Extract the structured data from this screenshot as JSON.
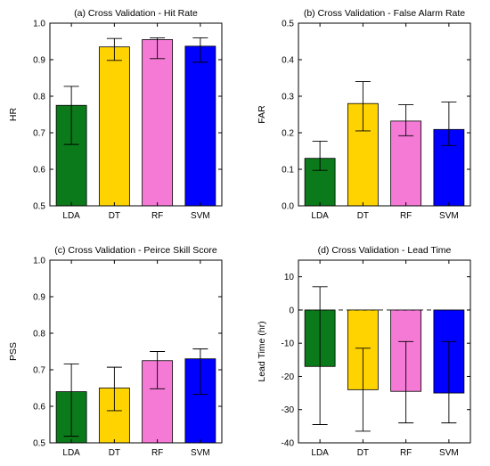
{
  "chart_data": [
    {
      "type": "bar",
      "title": "(a) Cross Validation - Hit Rate",
      "ylabel": "HR",
      "xlabel": "",
      "categories": [
        "LDA",
        "DT",
        "RF",
        "SVM"
      ],
      "values": [
        0.775,
        0.935,
        0.955,
        0.937
      ],
      "error_low": [
        0.668,
        0.898,
        0.903,
        0.893
      ],
      "error_high": [
        0.827,
        0.958,
        0.96,
        0.96
      ],
      "ylim": [
        0.5,
        1.0
      ],
      "yticks": [
        0.5,
        0.6,
        0.7,
        0.8,
        0.9,
        1.0
      ],
      "ytick_labels": [
        "0.5",
        "0.6",
        "0.7",
        "0.8",
        "0.9",
        "1.0"
      ],
      "colors": [
        "#0b7a1a",
        "#ffd300",
        "#f57ad6",
        "#0000ff"
      ],
      "zero_line": false,
      "grid": false
    },
    {
      "type": "bar",
      "title": "(b) Cross Validation - False Alarm Rate",
      "ylabel": "FAR",
      "xlabel": "",
      "categories": [
        "LDA",
        "DT",
        "RF",
        "SVM"
      ],
      "values": [
        0.13,
        0.28,
        0.232,
        0.209
      ],
      "error_low": [
        0.097,
        0.205,
        0.192,
        0.165
      ],
      "error_high": [
        0.177,
        0.34,
        0.277,
        0.284
      ],
      "ylim": [
        0.0,
        0.5
      ],
      "yticks": [
        0.0,
        0.1,
        0.2,
        0.3,
        0.4,
        0.5
      ],
      "ytick_labels": [
        "0.0",
        "0.1",
        "0.2",
        "0.3",
        "0.4",
        "0.5"
      ],
      "colors": [
        "#0b7a1a",
        "#ffd300",
        "#f57ad6",
        "#0000ff"
      ],
      "zero_line": false,
      "grid": false
    },
    {
      "type": "bar",
      "title": "(c) Cross Validation - Peirce Skill Score",
      "ylabel": "PSS",
      "xlabel": "",
      "categories": [
        "LDA",
        "DT",
        "RF",
        "SVM"
      ],
      "values": [
        0.64,
        0.65,
        0.725,
        0.73
      ],
      "error_low": [
        0.518,
        0.588,
        0.648,
        0.633
      ],
      "error_high": [
        0.716,
        0.707,
        0.75,
        0.757
      ],
      "ylim": [
        0.5,
        1.0
      ],
      "yticks": [
        0.5,
        0.6,
        0.7,
        0.8,
        0.9,
        1.0
      ],
      "ytick_labels": [
        "0.5",
        "0.6",
        "0.7",
        "0.8",
        "0.9",
        "1.0"
      ],
      "colors": [
        "#0b7a1a",
        "#ffd300",
        "#f57ad6",
        "#0000ff"
      ],
      "zero_line": false,
      "grid": false
    },
    {
      "type": "bar",
      "title": "(d) Cross Validation - Lead Time",
      "ylabel": "Lead Time (hr)",
      "xlabel": "",
      "categories": [
        "LDA",
        "DT",
        "RF",
        "SVM"
      ],
      "values": [
        -17,
        -24,
        -24.5,
        -25
      ],
      "error_low": [
        -34.5,
        -36.5,
        -34,
        -34
      ],
      "error_high": [
        7,
        -11.5,
        -9.5,
        -9.5
      ],
      "ylim": [
        -40,
        15
      ],
      "yticks": [
        -40,
        -30,
        -20,
        -10,
        0,
        10
      ],
      "ytick_labels": [
        "-40",
        "-30",
        "-20",
        "-10",
        "0",
        "10"
      ],
      "colors": [
        "#0b7a1a",
        "#ffd300",
        "#f57ad6",
        "#0000ff"
      ],
      "zero_line": true,
      "grid": false
    }
  ]
}
